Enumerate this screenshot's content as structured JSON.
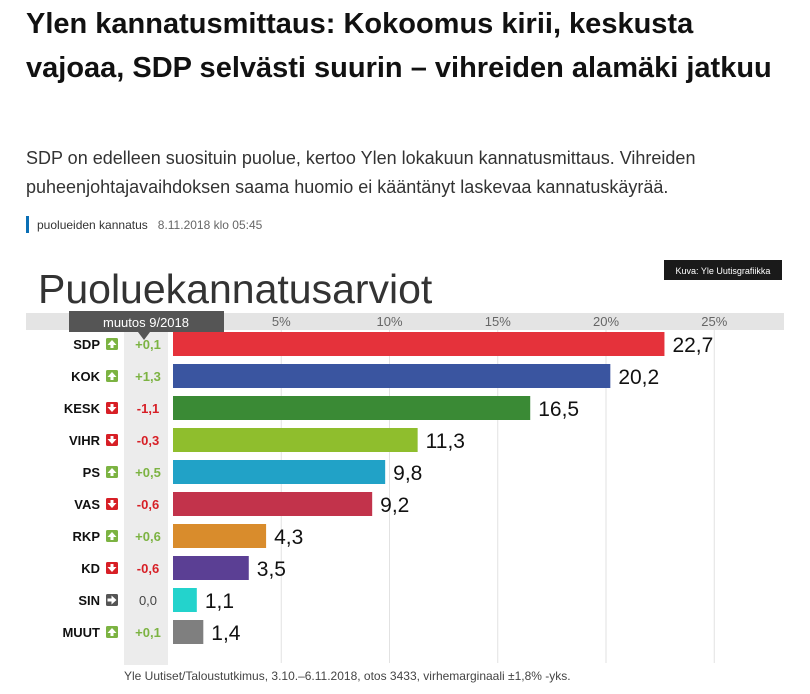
{
  "article": {
    "headline": "Ylen kannatusmittaus: Kokoomus kirii, keskusta vajoaa, SDP selvästi suurin – vihreiden alamäki jatkuu",
    "lead": "SDP on edelleen suosituin puolue, kertoo Ylen lokakuun kannatusmittaus. Vihreiden puheenjohtajavaihdoksen saama huomio ei kääntänyt laskevaa kannatuskäyrää.",
    "tag": "puolueiden kannatus",
    "date": "8.11.2018 klo 05:45"
  },
  "chart_data": {
    "type": "bar",
    "orientation": "horizontal",
    "title": "Puoluekannatusarviot",
    "credit": "Kuva: Yle Uutisgrafiikka",
    "change_header": "muutos 9/2018",
    "source": "Yle Uutiset/Taloustutkimus, 3.10.–6.11.2018, otos 3433, virhemarginaali ±1,8% -yks.",
    "xlim": [
      0,
      25
    ],
    "ticks": [
      {
        "value": 5,
        "label": "5%"
      },
      {
        "value": 10,
        "label": "10%"
      },
      {
        "value": 15,
        "label": "15%"
      },
      {
        "value": 20,
        "label": "20%"
      },
      {
        "value": 25,
        "label": "25%"
      }
    ],
    "categories": [
      "SDP",
      "KOK",
      "KESK",
      "VIHR",
      "PS",
      "VAS",
      "RKP",
      "KD",
      "SIN",
      "MUUT"
    ],
    "values": [
      22.7,
      20.2,
      16.5,
      11.3,
      9.8,
      9.2,
      4.3,
      3.5,
      1.1,
      1.4
    ],
    "value_labels": [
      "22,7",
      "20,2",
      "16,5",
      "11,3",
      "9,8",
      "9,2",
      "4,3",
      "3,5",
      "1,1",
      "1,4"
    ],
    "changes": [
      "+0,1",
      "+1,3",
      "-1,1",
      "-0,3",
      "+0,5",
      "-0,6",
      "+0,6",
      "-0,6",
      "0,0",
      "+0,1"
    ],
    "change_direction": [
      "up",
      "up",
      "down",
      "down",
      "up",
      "down",
      "up",
      "down",
      "flat",
      "up"
    ],
    "colors": [
      "#e5323b",
      "#3a55a0",
      "#3a8a35",
      "#8fbe2d",
      "#21a2c7",
      "#c2334b",
      "#d98c2c",
      "#5b3f94",
      "#23d3cc",
      "#7f7f7f"
    ],
    "change_colors": {
      "up": "#7cb342",
      "down": "#d71f26",
      "flat": "#555555"
    }
  }
}
